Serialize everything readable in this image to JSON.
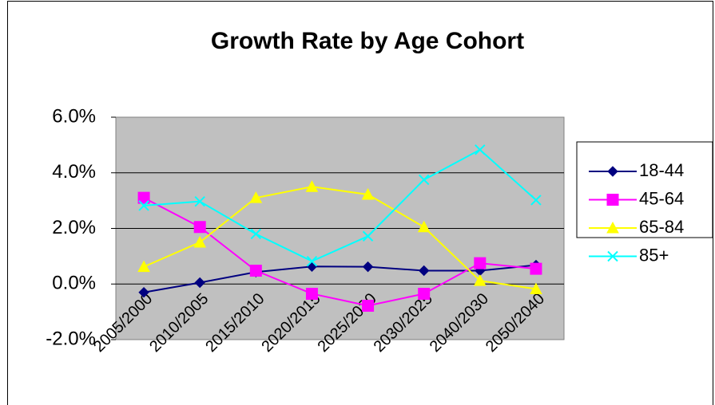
{
  "chart_data": {
    "type": "line",
    "title": "Growth Rate by Age Cohort",
    "categories": [
      "2005/2000",
      "2010/2005",
      "2015/2010",
      "2020/2015",
      "2025/2020",
      "2030/2025",
      "2040/2030",
      "2050/2040"
    ],
    "series": [
      {
        "name": "18-44",
        "color": "#000080",
        "marker": "diamond",
        "values": [
          -0.3,
          0.05,
          0.43,
          0.63,
          0.62,
          0.48,
          0.48,
          0.68
        ]
      },
      {
        "name": "45-64",
        "color": "#ff00ff",
        "marker": "square",
        "values": [
          3.1,
          2.05,
          0.48,
          -0.35,
          -0.78,
          -0.35,
          0.75,
          0.55
        ]
      },
      {
        "name": "65-84",
        "color": "#ffff00",
        "marker": "triangle",
        "values": [
          0.62,
          1.5,
          3.1,
          3.5,
          3.22,
          2.05,
          0.12,
          -0.18
        ]
      },
      {
        "name": "85+",
        "color": "#00ffff",
        "marker": "x",
        "values": [
          2.82,
          2.97,
          1.8,
          0.82,
          1.72,
          3.75,
          4.83,
          3.02
        ]
      }
    ],
    "ylim": [
      -2,
      6
    ],
    "yticks": [
      {
        "value": -2,
        "label": "-2.0%"
      },
      {
        "value": 0,
        "label": "0.0%"
      },
      {
        "value": 2,
        "label": "2.0%"
      },
      {
        "value": 4,
        "label": "4.0%"
      },
      {
        "value": 6,
        "label": "6.0%"
      }
    ],
    "grid": true,
    "legend": "right"
  }
}
